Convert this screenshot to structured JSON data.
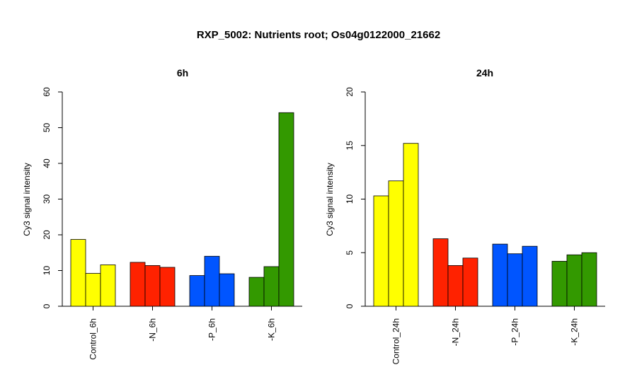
{
  "chart_data": {
    "title": "RXP_5002: Nutrients root; Os04g0122000_21662",
    "panels": [
      {
        "type": "bar",
        "title": "6h",
        "ylabel": "Cy3 signal intensity",
        "ylim": [
          0,
          60
        ],
        "yticks": [
          0,
          10,
          20,
          30,
          40,
          50,
          60
        ],
        "groups": [
          {
            "label": "Control_6h",
            "color": "#FFFF00",
            "values": [
              18.7,
              9.2,
              11.6
            ]
          },
          {
            "label": "-N_6h",
            "color": "#FF2200",
            "values": [
              12.3,
              11.4,
              10.9
            ]
          },
          {
            "label": "-P_6h",
            "color": "#0055FF",
            "values": [
              8.6,
              14.0,
              9.1
            ]
          },
          {
            "label": "-K_6h",
            "color": "#339900",
            "values": [
              8.1,
              11.1,
              54.2
            ]
          }
        ]
      },
      {
        "type": "bar",
        "title": "24h",
        "ylabel": "Cy3 signal intensity",
        "ylim": [
          0,
          20
        ],
        "yticks": [
          0,
          5,
          10,
          15,
          20
        ],
        "groups": [
          {
            "label": "Control_24h",
            "color": "#FFFF00",
            "values": [
              10.3,
              11.7,
              15.2
            ]
          },
          {
            "label": "-N_24h",
            "color": "#FF2200",
            "values": [
              6.3,
              3.8,
              4.5
            ]
          },
          {
            "label": "-P_24h",
            "color": "#0055FF",
            "values": [
              5.8,
              4.9,
              5.6
            ]
          },
          {
            "label": "-K_24h",
            "color": "#339900",
            "values": [
              4.2,
              4.8,
              5.0
            ]
          }
        ]
      }
    ]
  }
}
